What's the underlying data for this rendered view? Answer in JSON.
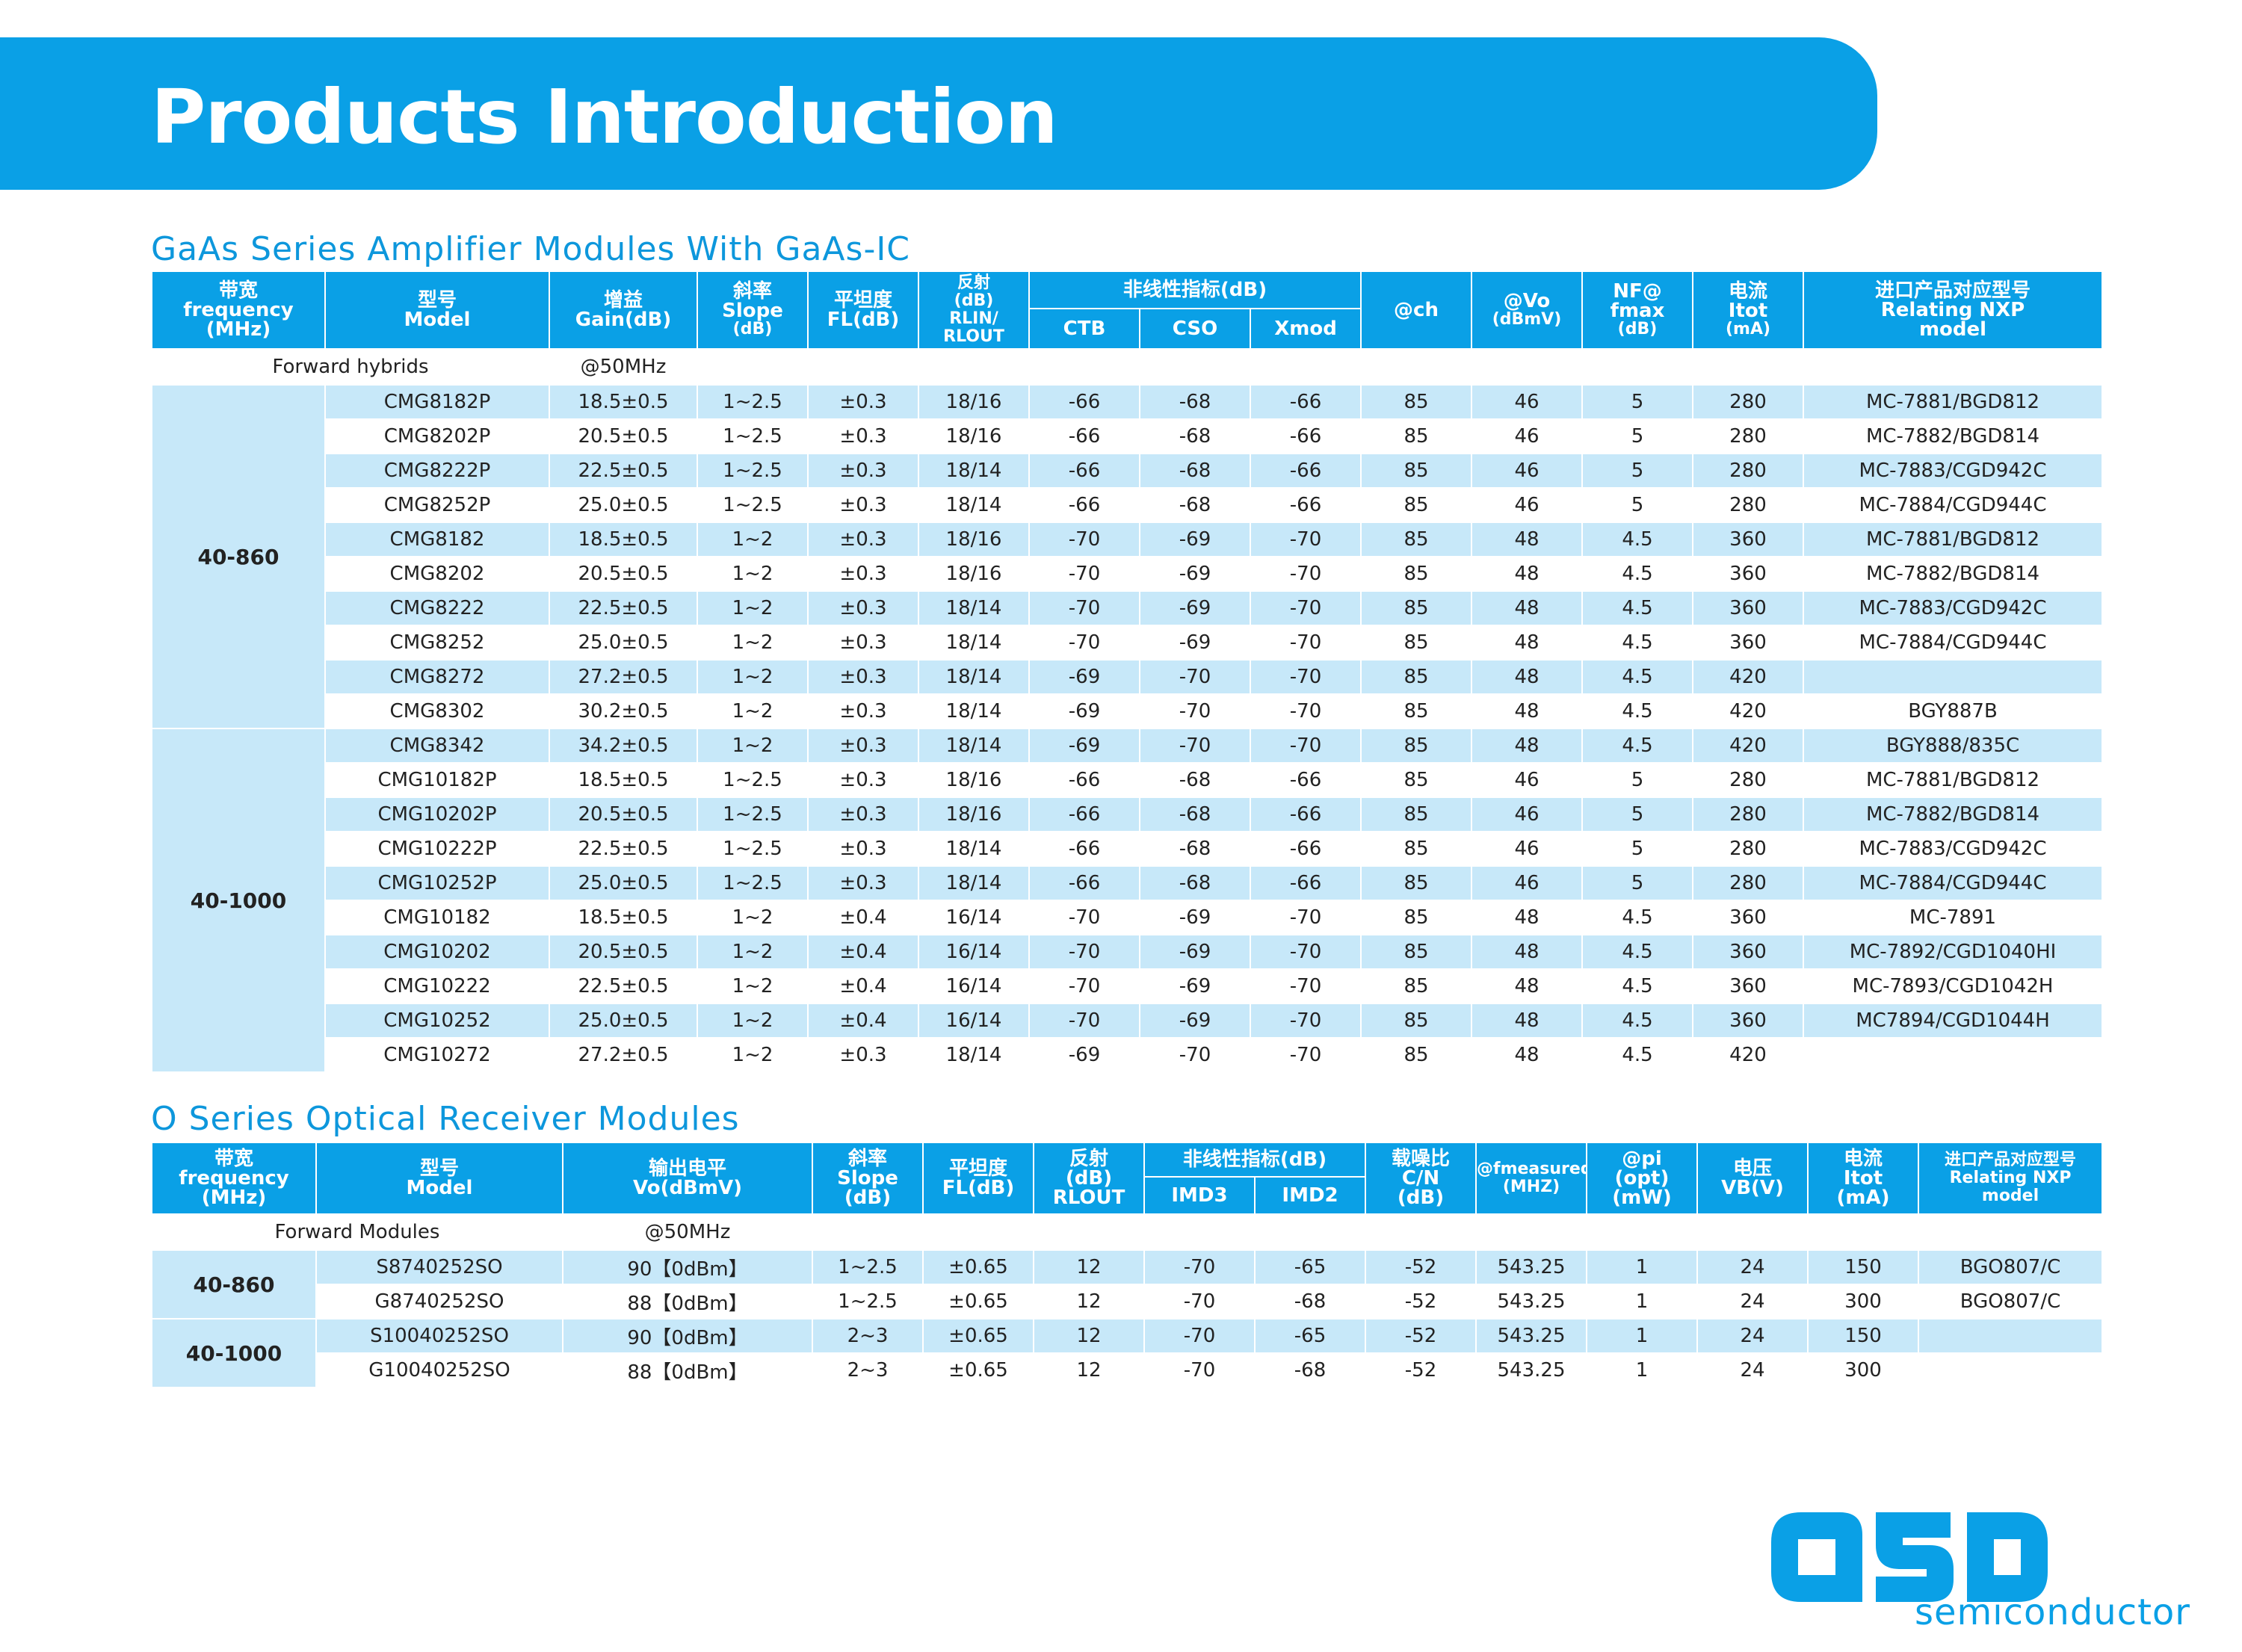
{
  "banner": {
    "title": "Products Introduction"
  },
  "colors": {
    "accent": "#0aa0e6",
    "row_alt": "#c7e8f9",
    "title_blue": "#0d97dc"
  },
  "section1": {
    "title": "GaAs Series Amplifier Modules With GaAs-IC",
    "headers": {
      "freq": [
        "带宽",
        "frequency",
        "(MHz)"
      ],
      "model": [
        "型号",
        "Model"
      ],
      "gain": [
        "增益",
        "Gain(dB)"
      ],
      "slope": [
        "斜率",
        "Slope",
        "(dB)"
      ],
      "fl": [
        "平坦度",
        "FL(dB)"
      ],
      "rl": [
        "反射",
        "(dB)",
        "RLIN/",
        "RLOUT"
      ],
      "nonlinear": "非线性指标(dB)",
      "ctb": "CTB",
      "cso": "CSO",
      "xmod": "Xmod",
      "ch": "@ch",
      "vo": [
        "@Vo",
        "(dBmV)"
      ],
      "nf": [
        "NF@",
        "fmax",
        "(dB)"
      ],
      "itot": [
        "电流",
        "Itot",
        "(mA)"
      ],
      "nxp": [
        "进口产品对应型号",
        "Relating NXP",
        "model"
      ]
    },
    "forward": {
      "label": "Forward hybrids",
      "gain": "@50MHz"
    },
    "bands": [
      {
        "label": "40-860",
        "rows": [
          [
            "CMG8182P",
            "18.5±0.5",
            "1~2.5",
            "±0.3",
            "18/16",
            "-66",
            "-68",
            "-66",
            "85",
            "46",
            "5",
            "280",
            "MC-7881/BGD812"
          ],
          [
            "CMG8202P",
            "20.5±0.5",
            "1~2.5",
            "±0.3",
            "18/16",
            "-66",
            "-68",
            "-66",
            "85",
            "46",
            "5",
            "280",
            "MC-7882/BGD814"
          ],
          [
            "CMG8222P",
            "22.5±0.5",
            "1~2.5",
            "±0.3",
            "18/14",
            "-66",
            "-68",
            "-66",
            "85",
            "46",
            "5",
            "280",
            "MC-7883/CGD942C"
          ],
          [
            "CMG8252P",
            "25.0±0.5",
            "1~2.5",
            "±0.3",
            "18/14",
            "-66",
            "-68",
            "-66",
            "85",
            "46",
            "5",
            "280",
            "MC-7884/CGD944C"
          ],
          [
            "CMG8182",
            "18.5±0.5",
            "1~2",
            "±0.3",
            "18/16",
            "-70",
            "-69",
            "-70",
            "85",
            "48",
            "4.5",
            "360",
            "MC-7881/BGD812"
          ],
          [
            "CMG8202",
            "20.5±0.5",
            "1~2",
            "±0.3",
            "18/16",
            "-70",
            "-69",
            "-70",
            "85",
            "48",
            "4.5",
            "360",
            "MC-7882/BGD814"
          ],
          [
            "CMG8222",
            "22.5±0.5",
            "1~2",
            "±0.3",
            "18/14",
            "-70",
            "-69",
            "-70",
            "85",
            "48",
            "4.5",
            "360",
            "MC-7883/CGD942C"
          ],
          [
            "CMG8252",
            "25.0±0.5",
            "1~2",
            "±0.3",
            "18/14",
            "-70",
            "-69",
            "-70",
            "85",
            "48",
            "4.5",
            "360",
            "MC-7884/CGD944C"
          ],
          [
            "CMG8272",
            "27.2±0.5",
            "1~2",
            "±0.3",
            "18/14",
            "-69",
            "-70",
            "-70",
            "85",
            "48",
            "4.5",
            "420",
            ""
          ],
          [
            "CMG8302",
            "30.2±0.5",
            "1~2",
            "±0.3",
            "18/14",
            "-69",
            "-70",
            "-70",
            "85",
            "48",
            "4.5",
            "420",
            "BGY887B"
          ]
        ]
      },
      {
        "label": "40-1000",
        "rows": [
          [
            "CMG8342",
            "34.2±0.5",
            "1~2",
            "±0.3",
            "18/14",
            "-69",
            "-70",
            "-70",
            "85",
            "48",
            "4.5",
            "420",
            "BGY888/835C"
          ],
          [
            "CMG10182P",
            "18.5±0.5",
            "1~2.5",
            "±0.3",
            "18/16",
            "-66",
            "-68",
            "-66",
            "85",
            "46",
            "5",
            "280",
            "MC-7881/BGD812"
          ],
          [
            "CMG10202P",
            "20.5±0.5",
            "1~2.5",
            "±0.3",
            "18/16",
            "-66",
            "-68",
            "-66",
            "85",
            "46",
            "5",
            "280",
            "MC-7882/BGD814"
          ],
          [
            "CMG10222P",
            "22.5±0.5",
            "1~2.5",
            "±0.3",
            "18/14",
            "-66",
            "-68",
            "-66",
            "85",
            "46",
            "5",
            "280",
            "MC-7883/CGD942C"
          ],
          [
            "CMG10252P",
            "25.0±0.5",
            "1~2.5",
            "±0.3",
            "18/14",
            "-66",
            "-68",
            "-66",
            "85",
            "46",
            "5",
            "280",
            "MC-7884/CGD944C"
          ],
          [
            "CMG10182",
            "18.5±0.5",
            "1~2",
            "±0.4",
            "16/14",
            "-70",
            "-69",
            "-70",
            "85",
            "48",
            "4.5",
            "360",
            "MC-7891"
          ],
          [
            "CMG10202",
            "20.5±0.5",
            "1~2",
            "±0.4",
            "16/14",
            "-70",
            "-69",
            "-70",
            "85",
            "48",
            "4.5",
            "360",
            "MC-7892/CGD1040HI"
          ],
          [
            "CMG10222",
            "22.5±0.5",
            "1~2",
            "±0.4",
            "16/14",
            "-70",
            "-69",
            "-70",
            "85",
            "48",
            "4.5",
            "360",
            "MC-7893/CGD1042H"
          ],
          [
            "CMG10252",
            "25.0±0.5",
            "1~2",
            "±0.4",
            "16/14",
            "-70",
            "-69",
            "-70",
            "85",
            "48",
            "4.5",
            "360",
            "MC7894/CGD1044H"
          ],
          [
            "CMG10272",
            "27.2±0.5",
            "1~2",
            "±0.3",
            "18/14",
            "-69",
            "-70",
            "-70",
            "85",
            "48",
            "4.5",
            "420",
            ""
          ]
        ]
      }
    ]
  },
  "section2": {
    "title": "O Series Optical Receiver Modules",
    "headers": {
      "freq": [
        "带宽",
        "frequency",
        "(MHz)"
      ],
      "model": [
        "型号",
        "Model"
      ],
      "vo": [
        "输出电平",
        "Vo(dBmV)"
      ],
      "slope": [
        "斜率",
        "Slope",
        "(dB)"
      ],
      "fl": [
        "平坦度",
        "FL(dB)"
      ],
      "rl": [
        "反射",
        "(dB)",
        "RLOUT"
      ],
      "nonlinear": "非线性指标(dB)",
      "imd3": "IMD3",
      "imd2": "IMD2",
      "cn": [
        "载噪比",
        "C/N",
        "(dB)"
      ],
      "fmeas": [
        "@fmeasured",
        "(MHZ)"
      ],
      "pi": [
        "@pi",
        "(opt)",
        "(mW)"
      ],
      "vb": [
        "电压",
        "VB(V)"
      ],
      "itot": [
        "电流",
        "Itot",
        "(mA)"
      ],
      "nxp": [
        "进口产品对应型号",
        "Relating NXP",
        "model"
      ]
    },
    "forward": {
      "label": "Forward Modules",
      "vo": "@50MHz"
    },
    "bands": [
      {
        "label": "40-860",
        "rows": [
          [
            "S8740252SO",
            "90【0dBm】",
            "1~2.5",
            "±0.65",
            "12",
            "-70",
            "-65",
            "-52",
            "543.25",
            "1",
            "24",
            "150",
            "BGO807/C"
          ],
          [
            "G8740252SO",
            "88【0dBm】",
            "1~2.5",
            "±0.65",
            "12",
            "-70",
            "-68",
            "-52",
            "543.25",
            "1",
            "24",
            "300",
            "BGO807/C"
          ]
        ]
      },
      {
        "label": "40-1000",
        "rows": [
          [
            "S10040252SO",
            "90【0dBm】",
            "2~3",
            "±0.65",
            "12",
            "-70",
            "-65",
            "-52",
            "543.25",
            "1",
            "24",
            "150",
            ""
          ],
          [
            "G10040252SO",
            "88【0dBm】",
            "2~3",
            "±0.65",
            "12",
            "-70",
            "-68",
            "-52",
            "543.25",
            "1",
            "24",
            "300",
            ""
          ]
        ]
      }
    ]
  },
  "logo": {
    "icon": "oso-logo-icon",
    "text": "semiconductor"
  }
}
